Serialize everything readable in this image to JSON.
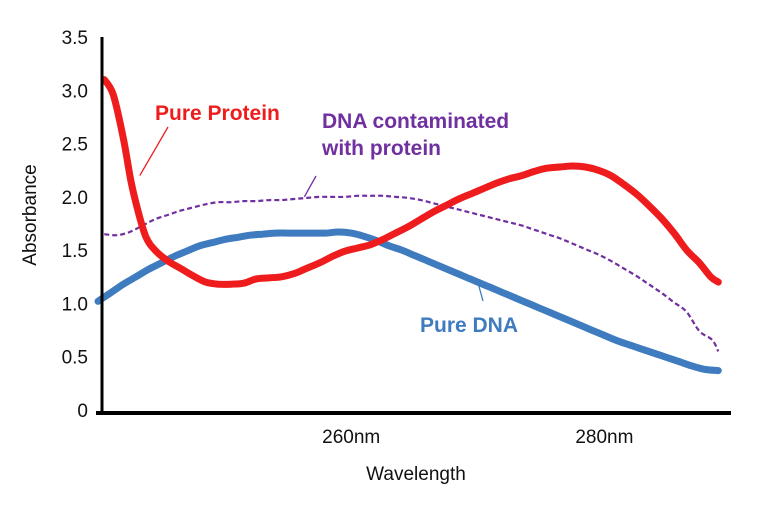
{
  "chart_data": {
    "type": "line",
    "title": "",
    "xlabel": "Wavelength",
    "ylabel": "Absorbance",
    "ylim": [
      0,
      3.5
    ],
    "xlim": [
      240,
      290
    ],
    "y_ticks": [
      "0",
      "0.5",
      "1.0",
      "1.5",
      "2.0",
      "2.5",
      "3.0",
      "3.5"
    ],
    "y_tick_values": [
      0,
      0.5,
      1.0,
      1.5,
      2.0,
      2.5,
      3.0,
      3.5
    ],
    "x_ticks": [
      {
        "value": 260,
        "label": "260nm"
      },
      {
        "value": 280,
        "label": "280nm"
      }
    ],
    "grid": false,
    "legend": "none (series labeled with callout annotations)",
    "series": [
      {
        "name": "Pure Protein",
        "color": "#ee1c1c",
        "style": "solid-thick",
        "label_text": "Pure Protein",
        "x": [
          240.5,
          241.2,
          242.0,
          242.6,
          243.2,
          243.8,
          244.5,
          245.5,
          246.5,
          247.5,
          248.5,
          249.5,
          250.5,
          251.5,
          252.5,
          253.5,
          254.5,
          255.5,
          256.5,
          257.5,
          258.5,
          259.5,
          260.5,
          261.5,
          262.5,
          263.5,
          264.5,
          265.5,
          266.5,
          267.5,
          268.5,
          269.5,
          270.5,
          271.5,
          272.5,
          273.5,
          274.5,
          275.5,
          276.5,
          277.5,
          278.5,
          279.5,
          280.5,
          281.5,
          282.5,
          283.5,
          284.5,
          285.5,
          286.5,
          287.5,
          288.4,
          289.0
        ],
        "y": [
          3.1,
          2.96,
          2.55,
          2.15,
          1.85,
          1.62,
          1.5,
          1.4,
          1.33,
          1.26,
          1.2,
          1.18,
          1.18,
          1.19,
          1.23,
          1.24,
          1.25,
          1.28,
          1.33,
          1.38,
          1.44,
          1.49,
          1.52,
          1.55,
          1.6,
          1.66,
          1.72,
          1.79,
          1.86,
          1.92,
          1.98,
          2.03,
          2.08,
          2.13,
          2.17,
          2.2,
          2.24,
          2.27,
          2.28,
          2.29,
          2.28,
          2.25,
          2.2,
          2.12,
          2.03,
          1.92,
          1.8,
          1.66,
          1.5,
          1.38,
          1.25,
          1.2
        ]
      },
      {
        "name": "DNA contaminated with protein",
        "color": "#7030a0",
        "style": "dashed",
        "label_text": "DNA contaminated\nwith protein",
        "x": [
          240.5,
          241.5,
          242.5,
          243.5,
          244.5,
          245.5,
          246.5,
          247.5,
          248.5,
          249.5,
          250.5,
          251.5,
          252.5,
          253.5,
          254.5,
          255.5,
          256.5,
          257.5,
          258.5,
          259.5,
          260.5,
          261.5,
          262.5,
          263.5,
          264.5,
          265.5,
          266.5,
          267.5,
          268.5,
          269.5,
          270.5,
          271.5,
          272.5,
          273.5,
          274.5,
          275.5,
          276.5,
          277.5,
          278.5,
          279.5,
          280.5,
          281.5,
          282.5,
          283.5,
          284.5,
          285.5,
          286.5,
          287.5,
          288.5,
          289.0
        ],
        "y": [
          1.65,
          1.64,
          1.67,
          1.73,
          1.79,
          1.83,
          1.87,
          1.9,
          1.93,
          1.95,
          1.95,
          1.96,
          1.96,
          1.97,
          1.97,
          1.98,
          1.99,
          2.0,
          2.0,
          2.0,
          2.01,
          2.01,
          2.01,
          2.0,
          1.99,
          1.97,
          1.94,
          1.91,
          1.88,
          1.85,
          1.82,
          1.79,
          1.76,
          1.73,
          1.69,
          1.65,
          1.61,
          1.56,
          1.51,
          1.46,
          1.4,
          1.33,
          1.26,
          1.18,
          1.1,
          1.01,
          0.92,
          0.74,
          0.66,
          0.55
        ]
      },
      {
        "name": "Pure DNA",
        "color": "#3e7bbf",
        "style": "solid-thick",
        "label_text": "Pure DNA",
        "x": [
          240.0,
          241.0,
          242.0,
          243.0,
          244.0,
          245.0,
          246.0,
          247.0,
          248.0,
          249.0,
          250.0,
          251.0,
          252.0,
          253.0,
          254.0,
          255.0,
          256.0,
          257.0,
          258.0,
          259.0,
          260.0,
          261.0,
          262.0,
          263.0,
          264.0,
          265.0,
          266.0,
          267.0,
          268.0,
          269.0,
          270.0,
          271.0,
          272.0,
          273.0,
          274.0,
          275.0,
          276.0,
          277.0,
          278.0,
          279.0,
          280.0,
          281.0,
          282.0,
          283.0,
          284.0,
          285.0,
          286.0,
          287.0,
          288.0,
          289.0
        ],
        "y": [
          1.02,
          1.1,
          1.18,
          1.25,
          1.32,
          1.38,
          1.44,
          1.49,
          1.54,
          1.57,
          1.6,
          1.62,
          1.64,
          1.65,
          1.66,
          1.66,
          1.66,
          1.66,
          1.66,
          1.67,
          1.66,
          1.63,
          1.59,
          1.54,
          1.5,
          1.45,
          1.4,
          1.35,
          1.3,
          1.25,
          1.2,
          1.15,
          1.1,
          1.05,
          1.0,
          0.95,
          0.9,
          0.85,
          0.8,
          0.75,
          0.7,
          0.65,
          0.61,
          0.57,
          0.53,
          0.49,
          0.45,
          0.41,
          0.38,
          0.37
        ]
      }
    ],
    "annotations": [
      {
        "text": "Pure Protein",
        "series": "Pure Protein",
        "color": "#ee1c1c",
        "lines": [
          "Pure Protein"
        ],
        "anchor_x": 243.3,
        "anchor_y": 2.2
      },
      {
        "text": "DNA contaminated with protein",
        "series": "DNA contaminated with protein",
        "color": "#7030a0",
        "lines": [
          "DNA contaminated",
          "with protein"
        ],
        "anchor_x": 256.3,
        "anchor_y": 2.0
      },
      {
        "text": "Pure DNA",
        "series": "Pure DNA",
        "color": "#3e7bbf",
        "lines": [
          "Pure DNA"
        ],
        "anchor_x": 270.0,
        "anchor_y": 1.2
      }
    ]
  }
}
